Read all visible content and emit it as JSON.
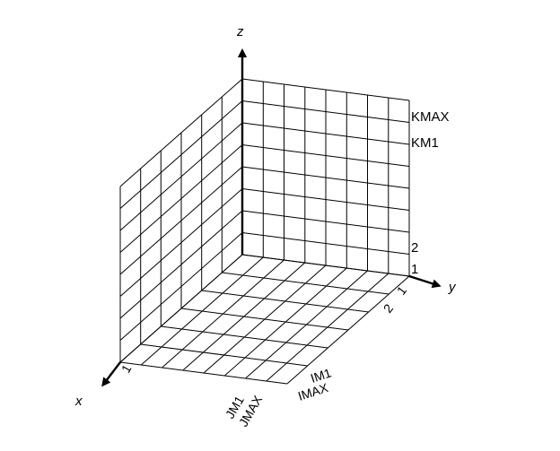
{
  "axes": {
    "x": "x",
    "y": "y",
    "z": "z"
  },
  "z_labels": {
    "kmax": "KMAX",
    "km1": "KM1",
    "two": "2",
    "one": "1"
  },
  "i_labels": {
    "one": "1",
    "two": "2",
    "im1": "IM1",
    "imax": "IMAX"
  },
  "j_labels": {
    "one": "1",
    "jm1": "JM1",
    "jmax": "JMAX"
  },
  "grid": {
    "i_cells": 8,
    "j_cells": 6,
    "k_cells": 8
  }
}
